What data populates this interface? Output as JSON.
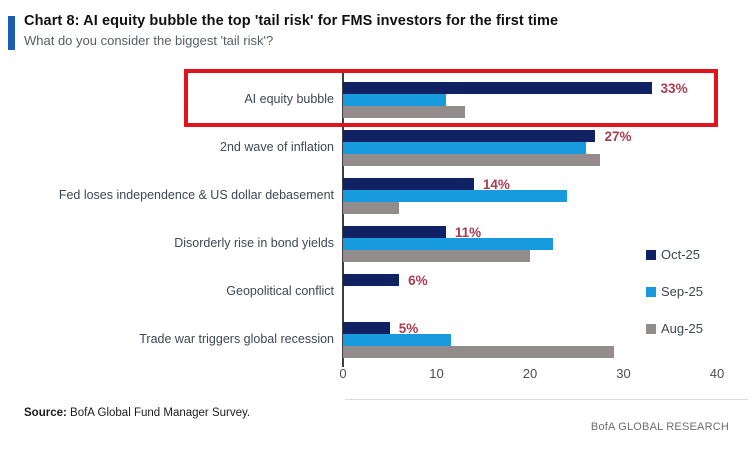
{
  "header": {
    "title": "Chart 8: AI equity bubble the top 'tail risk' for FMS investors for the first time",
    "subtitle": "What do you consider the biggest 'tail risk'?"
  },
  "chart_data": {
    "type": "bar",
    "orientation": "horizontal",
    "title": "Chart 8: AI equity bubble the top 'tail risk' for FMS investors for the first time",
    "subtitle": "What do you consider the biggest 'tail risk'?",
    "categories": [
      "AI equity bubble",
      "2nd wave of inflation",
      "Fed loses independence & US dollar debasement",
      "Disorderly rise in bond yields",
      "Geopolitical conflict",
      "Trade war triggers global recession"
    ],
    "series": [
      {
        "name": "Oct-25",
        "color": "#112264",
        "values": [
          33,
          27,
          14,
          11,
          6,
          5
        ]
      },
      {
        "name": "Sep-25",
        "color": "#189ade",
        "values": [
          11,
          26,
          24,
          22.5,
          0,
          11.5
        ]
      },
      {
        "name": "Aug-25",
        "color": "#948c8c",
        "values": [
          13,
          27.5,
          6,
          20,
          0,
          29
        ]
      }
    ],
    "value_labels": [
      "33%",
      "27%",
      "14%",
      "11%",
      "6%",
      "5%"
    ],
    "value_label_color": "#a93c50",
    "xlim": [
      0,
      40
    ],
    "xticks": [
      0,
      10,
      20,
      30,
      40
    ],
    "grid": false,
    "legend_position": "right",
    "highlight": {
      "category": "AI equity bubble",
      "color": "#e1141e"
    }
  },
  "footer": {
    "source_label": "Source:",
    "source_text": " BofA Global Fund Manager Survey.",
    "brand": "BofA GLOBAL RESEARCH"
  }
}
